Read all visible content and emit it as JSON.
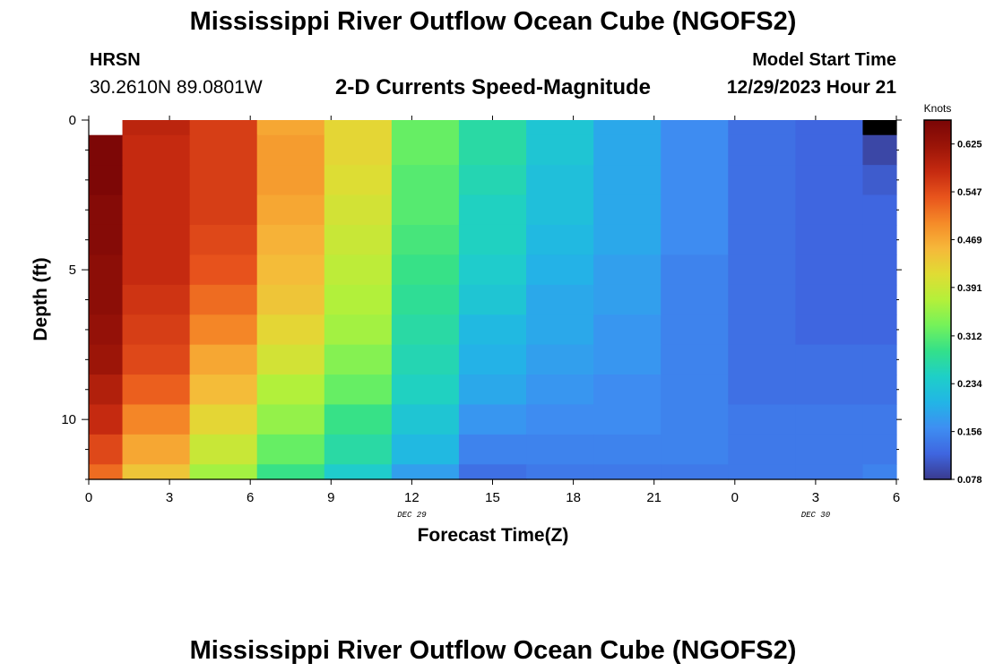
{
  "page": {
    "title": "Mississippi River Outflow Ocean Cube (NGOFS2)",
    "footer_title": "Mississippi River Outflow Ocean Cube (NGOFS2)",
    "station_name": "HRSN",
    "station_coords": "30.2610N  89.0801W",
    "subtitle": "2-D Currents Speed-Magnitude",
    "model_start_label": "Model Start Time",
    "model_start_value": "12/29/2023 Hour 21"
  },
  "chart_data": {
    "type": "heatmap",
    "title": "2-D Currents Speed-Magnitude",
    "xlabel": "Forecast Time(Z)",
    "ylabel": "Depth (ft)",
    "x_ticks": [
      "0",
      "3",
      "6",
      "9",
      "12",
      "15",
      "18",
      "21",
      "0",
      "3",
      "6"
    ],
    "x_date_labels": [
      {
        "label": "DEC 29",
        "at_hour": 12
      },
      {
        "label": "DEC 30",
        "at_hour": 27
      }
    ],
    "xlim_hours": [
      0,
      30
    ],
    "y_ticks": [
      "0",
      "5",
      "10"
    ],
    "ylim_ft": [
      0,
      12
    ],
    "y_inverted": true,
    "colorbar": {
      "unit": "Knots",
      "ticks": [
        "0.625",
        "0.547",
        "0.469",
        "0.391",
        "0.312",
        "0.234",
        "0.156",
        "0.078"
      ],
      "min": 0.078,
      "max": 0.664,
      "colors": [
        "#3a3a8e",
        "#3f66e0",
        "#3e8ef2",
        "#22b5e6",
        "#1ecfc8",
        "#33e08a",
        "#74f25a",
        "#b4f03a",
        "#e0dc34",
        "#f6b83a",
        "#f58a28",
        "#e8541c",
        "#c52a10",
        "#9a1408",
        "#7a0606"
      ]
    },
    "column_hours": [
      0,
      1.25,
      3.75,
      6.25,
      8.75,
      11.25,
      13.75,
      16.25,
      18.75,
      21.25,
      23.75,
      26.25,
      28.75,
      30
    ],
    "row_depths_ft": [
      0,
      0.5,
      1.5,
      2.5,
      3.5,
      4.5,
      5.5,
      6.5,
      7.5,
      8.5,
      9.5,
      10.5,
      11.5,
      12
    ],
    "speeds_knots": [
      [
        null,
        0.59,
        0.56,
        0.47,
        0.42,
        0.32,
        0.27,
        0.23,
        0.19,
        0.16,
        0.13,
        0.12,
        null
      ],
      [
        0.66,
        0.58,
        0.56,
        0.48,
        0.42,
        0.32,
        0.27,
        0.23,
        0.19,
        0.16,
        0.13,
        0.12,
        0.09
      ],
      [
        0.66,
        0.58,
        0.56,
        0.48,
        0.41,
        0.31,
        0.26,
        0.22,
        0.19,
        0.16,
        0.13,
        0.12,
        0.11
      ],
      [
        0.65,
        0.58,
        0.56,
        0.47,
        0.4,
        0.31,
        0.25,
        0.22,
        0.19,
        0.16,
        0.13,
        0.12,
        0.12
      ],
      [
        0.65,
        0.58,
        0.55,
        0.46,
        0.39,
        0.3,
        0.25,
        0.21,
        0.19,
        0.16,
        0.13,
        0.12,
        0.12
      ],
      [
        0.64,
        0.58,
        0.54,
        0.45,
        0.38,
        0.29,
        0.24,
        0.2,
        0.18,
        0.15,
        0.13,
        0.12,
        0.12
      ],
      [
        0.64,
        0.57,
        0.52,
        0.44,
        0.37,
        0.28,
        0.23,
        0.19,
        0.18,
        0.15,
        0.13,
        0.12,
        0.12
      ],
      [
        0.63,
        0.56,
        0.5,
        0.42,
        0.36,
        0.27,
        0.21,
        0.19,
        0.17,
        0.15,
        0.13,
        0.12,
        0.12
      ],
      [
        0.62,
        0.55,
        0.47,
        0.4,
        0.34,
        0.26,
        0.2,
        0.18,
        0.17,
        0.15,
        0.13,
        0.13,
        0.13
      ],
      [
        0.6,
        0.53,
        0.45,
        0.37,
        0.32,
        0.25,
        0.19,
        0.17,
        0.16,
        0.15,
        0.13,
        0.13,
        0.13
      ],
      [
        0.58,
        0.5,
        0.42,
        0.35,
        0.29,
        0.23,
        0.17,
        0.16,
        0.16,
        0.15,
        0.14,
        0.14,
        0.14
      ],
      [
        0.55,
        0.47,
        0.39,
        0.32,
        0.27,
        0.21,
        0.15,
        0.15,
        0.15,
        0.15,
        0.14,
        0.14,
        0.14
      ],
      [
        0.52,
        0.44,
        0.36,
        0.29,
        0.24,
        0.18,
        0.13,
        0.14,
        0.14,
        0.14,
        0.14,
        0.14,
        0.15
      ]
    ]
  }
}
